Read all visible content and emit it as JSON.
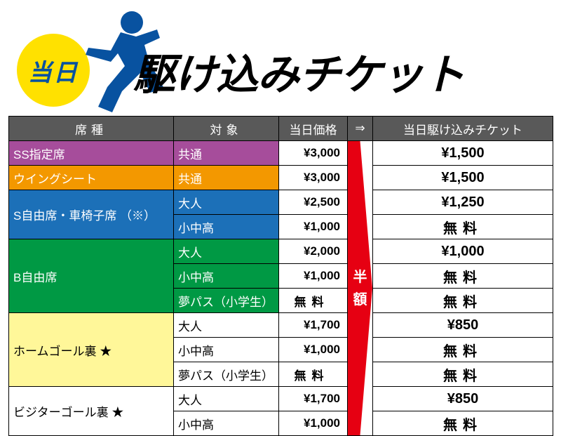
{
  "header": {
    "badge": "当日",
    "title": "駆け込みチケット"
  },
  "colors": {
    "badge_bg": "#ffe100",
    "badge_text": "#0852a0",
    "runner": "#0852a0",
    "header_bg": "#595959",
    "arrow": "#e60012",
    "purple": "#a64d9b",
    "orange": "#f39800",
    "blue": "#1c70b8",
    "green": "#009944",
    "yellow": "#fff799",
    "white": "#ffffff"
  },
  "columns": {
    "seat": "席種",
    "target": "対象",
    "price": "当日価格",
    "arrow": "⇒",
    "discount": "当日駆け込みチケット"
  },
  "arrow_label": [
    "半",
    "額"
  ],
  "rows": [
    {
      "seat": "SS指定席",
      "seat_rowspan": 1,
      "seat_color": "purple",
      "target": "共通",
      "target_color": "purple",
      "target_text": "light",
      "price": "¥3,000",
      "discount": "¥1,500"
    },
    {
      "seat": "ウイングシート",
      "seat_rowspan": 1,
      "seat_color": "orange",
      "target": "共通",
      "target_color": "orange",
      "target_text": "light",
      "price": "¥3,000",
      "discount": "¥1,500"
    },
    {
      "seat": "S自由席・車椅子席 （※）",
      "seat_rowspan": 2,
      "seat_color": "blue",
      "target": "大人",
      "target_color": "blue",
      "target_text": "light",
      "price": "¥2,500",
      "discount": "¥1,250"
    },
    {
      "target": "小中高",
      "target_color": "blue",
      "target_text": "light",
      "price": "¥1,000",
      "discount": "無料",
      "discount_free": true
    },
    {
      "seat": "B自由席",
      "seat_rowspan": 3,
      "seat_color": "green",
      "target": "大人",
      "target_color": "green",
      "target_text": "light",
      "price": "¥2,000",
      "discount": "¥1,000"
    },
    {
      "target": "小中高",
      "target_color": "green",
      "target_text": "light",
      "price": "¥1,000",
      "discount": "無料",
      "discount_free": true
    },
    {
      "target": "夢パス（小学生）",
      "target_color": "green",
      "target_text": "light",
      "price": "無料",
      "price_free": true,
      "discount": "無料",
      "discount_free": true
    },
    {
      "seat": "ホームゴール裏 ★",
      "seat_rowspan": 3,
      "seat_color": "yellow",
      "seat_text": "dark",
      "target": "大人",
      "target_color": "white",
      "target_text": "dark",
      "price": "¥1,700",
      "discount": "¥850"
    },
    {
      "target": "小中高",
      "target_color": "white",
      "target_text": "dark",
      "price": "¥1,000",
      "discount": "無料",
      "discount_free": true
    },
    {
      "target": "夢パス（小学生）",
      "target_color": "white",
      "target_text": "dark",
      "price": "無料",
      "price_free": true,
      "discount": "無料",
      "discount_free": true
    },
    {
      "seat": "ビジターゴール裏 ★",
      "seat_rowspan": 2,
      "seat_color": "white",
      "seat_text": "dark",
      "target": "大人",
      "target_color": "white",
      "target_text": "dark",
      "price": "¥1,700",
      "discount": "¥850"
    },
    {
      "target": "小中高",
      "target_color": "white",
      "target_text": "dark",
      "price": "¥1,000",
      "discount": "無料",
      "discount_free": true
    }
  ]
}
